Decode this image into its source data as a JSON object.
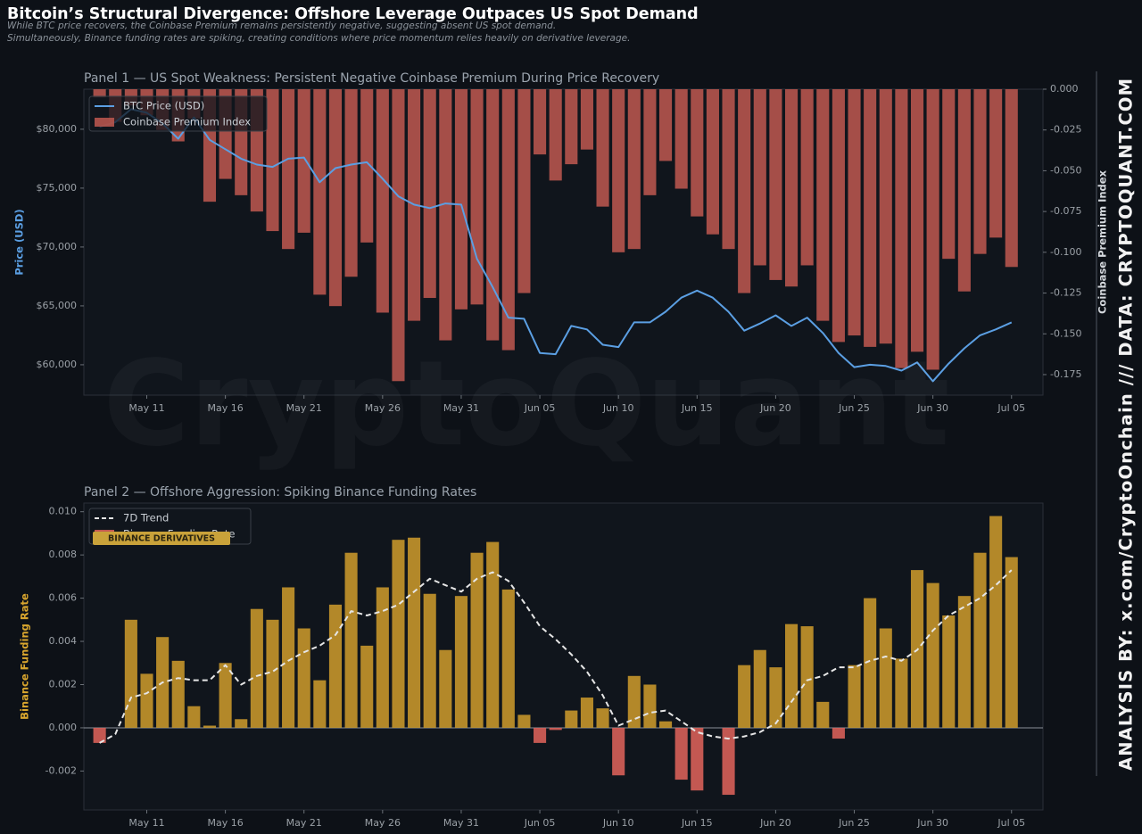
{
  "title": "Bitcoin’s Structural Divergence: Offshore Leverage Outpaces US Spot Demand",
  "subtitle": [
    "While BTC price recovers, the Coinbase Premium remains persistently negative, suggesting absent US spot demand.",
    "Simultaneously, Binance funding rates are spiking, creating conditions where price momentum relies heavily on derivative leverage."
  ],
  "watermark": "CryptoQuant",
  "credit": "ANALYSIS BY: x.com/CryptoOnchain   ///   DATA: CRYPTOQUANT.COM",
  "badge": "BINANCE DERIVATIVES",
  "chart_data": [
    {
      "type": "combo",
      "title": "Panel 1 — US Spot Weakness: Persistent Negative Coinbase Premium During Price Recovery",
      "y_label": "Price (USD)",
      "y2_label": "Coinbase Premium Index",
      "categories": [
        null,
        null,
        null,
        "May 11",
        null,
        null,
        null,
        null,
        "May 16",
        null,
        null,
        null,
        null,
        "May 21",
        null,
        null,
        null,
        null,
        "May 26",
        null,
        null,
        null,
        null,
        "May 31",
        null,
        null,
        null,
        null,
        "Jun 05",
        null,
        null,
        null,
        null,
        "Jun 10",
        null,
        null,
        null,
        null,
        "Jun 15",
        null,
        null,
        null,
        null,
        "Jun 20",
        null,
        null,
        null,
        null,
        "Jun 25",
        null,
        null,
        null,
        null,
        "Jun 30",
        null,
        null,
        null,
        null,
        "Jul 05"
      ],
      "ylim": [
        57420,
        83400
      ],
      "yticks": [
        {
          "value": 60000,
          "label": "$60,000"
        },
        {
          "value": 65000,
          "label": "$65,000"
        },
        {
          "value": 70000,
          "label": "$70,000"
        },
        {
          "value": 75000,
          "label": "$75,000"
        },
        {
          "value": 80000,
          "label": "$80,000"
        }
      ],
      "y2lim": [
        -0.1876,
        0
      ],
      "y2ticks": [
        {
          "value": 0,
          "label": "0.000"
        },
        {
          "value": -0.025,
          "label": "-0.025"
        },
        {
          "value": -0.05,
          "label": "-0.050"
        },
        {
          "value": -0.075,
          "label": "-0.075"
        },
        {
          "value": -0.1,
          "label": "-0.100"
        },
        {
          "value": -0.125,
          "label": "-0.125"
        },
        {
          "value": -0.15,
          "label": "-0.150"
        },
        {
          "value": -0.175,
          "label": "-0.175"
        }
      ],
      "grid": false,
      "legend": "upper left",
      "series": [
        {
          "name": "BTC Price (USD)",
          "type": "line",
          "color": "#5b9fe3",
          "values": [
            80200,
            80600,
            81700,
            81400,
            80500,
            79200,
            81000,
            79100,
            78300,
            77500,
            77000,
            76800,
            77500,
            77600,
            75500,
            76700,
            77000,
            77200,
            75800,
            74300,
            73600,
            73300,
            73700,
            73600,
            69000,
            66600,
            64000,
            63900,
            61000,
            60900,
            63300,
            63000,
            61700,
            61500,
            63600,
            63600,
            64500,
            65700,
            66300,
            65700,
            64500,
            62900,
            63500,
            64200,
            63300,
            64000,
            62700,
            61000,
            59800,
            60000,
            59900,
            59500,
            60200,
            58600,
            60100,
            61400,
            62500,
            63000,
            63600
          ]
        },
        {
          "name": "Coinbase Premium Index",
          "type": "bar",
          "axis": "y2",
          "color": "#b9564f",
          "values": [
            -0.005,
            -0.02,
            -0.01,
            -0.016,
            -0.025,
            -0.032,
            -0.018,
            -0.069,
            -0.055,
            -0.065,
            -0.075,
            -0.087,
            -0.098,
            -0.088,
            -0.126,
            -0.133,
            -0.115,
            -0.094,
            -0.137,
            -0.179,
            -0.142,
            -0.128,
            -0.154,
            -0.135,
            -0.132,
            -0.154,
            -0.16,
            -0.125,
            -0.04,
            -0.056,
            -0.046,
            -0.037,
            -0.072,
            -0.1,
            -0.098,
            -0.065,
            -0.044,
            -0.061,
            -0.078,
            -0.089,
            -0.098,
            -0.125,
            -0.108,
            -0.117,
            -0.121,
            -0.108,
            -0.142,
            -0.155,
            -0.151,
            -0.158,
            -0.156,
            -0.171,
            -0.161,
            -0.172,
            -0.104,
            -0.124,
            -0.101,
            -0.091,
            -0.109
          ]
        }
      ]
    },
    {
      "type": "combo",
      "title": "Panel 2 — Offshore Aggression: Spiking Binance Funding Rates",
      "y_label": "Binance Funding Rate",
      "categories": [
        null,
        null,
        null,
        "May 11",
        null,
        null,
        null,
        null,
        "May 16",
        null,
        null,
        null,
        null,
        "May 21",
        null,
        null,
        null,
        null,
        "May 26",
        null,
        null,
        null,
        null,
        "May 31",
        null,
        null,
        null,
        null,
        "Jun 05",
        null,
        null,
        null,
        null,
        "Jun 10",
        null,
        null,
        null,
        null,
        "Jun 15",
        null,
        null,
        null,
        null,
        "Jun 20",
        null,
        null,
        null,
        null,
        "Jun 25",
        null,
        null,
        null,
        null,
        "Jun 30",
        null,
        null,
        null,
        null,
        "Jul 05"
      ],
      "ylim": [
        -0.0038,
        0.0104
      ],
      "yticks": [
        {
          "value": -0.002,
          "label": "-0.002"
        },
        {
          "value": 0,
          "label": "0.000"
        },
        {
          "value": 0.002,
          "label": "0.002"
        },
        {
          "value": 0.004,
          "label": "0.004"
        },
        {
          "value": 0.006,
          "label": "0.006"
        },
        {
          "value": 0.008,
          "label": "0.008"
        },
        {
          "value": 0.01,
          "label": "0.010"
        }
      ],
      "grid": false,
      "legend": "upper left",
      "series": [
        {
          "name": "7D Trend",
          "type": "line",
          "color": "#e6e6e6",
          "dashed": true,
          "values": [
            -0.0007,
            -0.0003,
            0.0014,
            0.0016,
            0.0021,
            0.0023,
            0.0022,
            0.0022,
            0.0029,
            0.002,
            0.0024,
            0.0026,
            0.0031,
            0.0035,
            0.0038,
            0.0043,
            0.0054,
            0.0052,
            0.0054,
            0.0057,
            0.0063,
            0.0069,
            0.0066,
            0.0063,
            0.0069,
            0.0072,
            0.0068,
            0.0058,
            0.0047,
            0.0041,
            0.0034,
            0.0026,
            0.0015,
            0.0001,
            0.0004,
            0.0007,
            0.0008,
            0.0003,
            -0.0002,
            -0.0004,
            -0.0005,
            -0.0004,
            -0.0002,
            0.0002,
            0.0012,
            0.0022,
            0.0024,
            0.0028,
            0.0028,
            0.0031,
            0.0033,
            0.0031,
            0.0036,
            0.0045,
            0.0052,
            0.0056,
            0.006,
            0.0066,
            0.0073
          ]
        },
        {
          "name": "Binance Funding Rate",
          "type": "bar",
          "color": "#c9982b",
          "negative_color": "#dc625a",
          "values": [
            -0.0007,
            0,
            0.005,
            0.0025,
            0.0042,
            0.0031,
            0.001,
            0.0001,
            0.003,
            0.0004,
            0.0055,
            0.005,
            0.0065,
            0.0046,
            0.0022,
            0.0057,
            0.0081,
            0.0038,
            0.0065,
            0.0087,
            0.0088,
            0.0062,
            0.0036,
            0.0061,
            0.0081,
            0.0086,
            0.0064,
            0.0006,
            -0.0007,
            -0.0001,
            0.0008,
            0.0014,
            0.0009,
            -0.0022,
            0.0024,
            0.002,
            0.0003,
            -0.0024,
            -0.0029,
            0,
            -0.0031,
            0.0029,
            0.0036,
            0.0028,
            0.0048,
            0.0047,
            0.0012,
            -0.0005,
            0.0029,
            0.006,
            0.0046,
            0.0032,
            0.0073,
            0.0067,
            0.0052,
            0.0061,
            0.0081,
            0.0098,
            0.0079
          ]
        }
      ]
    }
  ]
}
